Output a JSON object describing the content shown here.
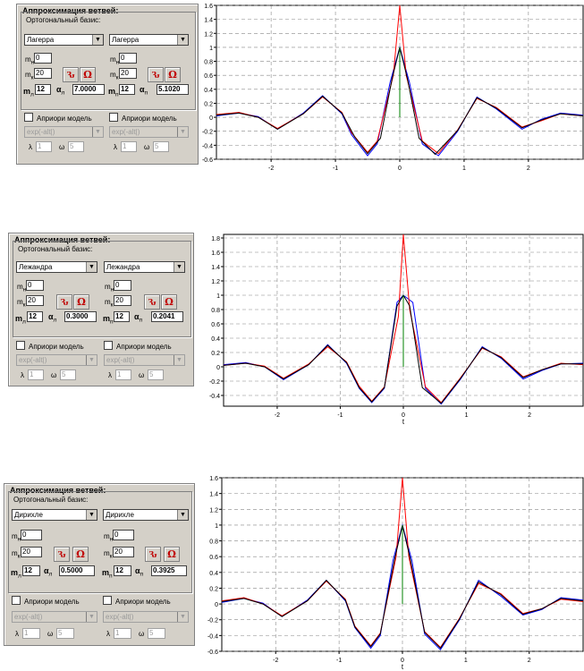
{
  "panel": {
    "title": "Аппроксимация ветвей:",
    "basis_label": "Ортогональный базис:",
    "mn_label": "m",
    "mn_sub": "н",
    "mk_label": "m",
    "mk_sub": "к",
    "mn_value": "0",
    "mk_value": "20",
    "m_bold": "m",
    "alpha_symbol": "α",
    "sub_left": "л",
    "sub_right": "п",
    "m_value": "12",
    "apriori_label": "Априори модель",
    "model_value": "exp(-alt|)",
    "lambda_symbol": "λ",
    "omega_symbol": "ω",
    "lambda_value": "1",
    "omega_value": "5",
    "btn1_glyph": "Ԅ",
    "btn2_glyph": "Ω"
  },
  "blocks": [
    {
      "basis_left": "Лагерра",
      "basis_right": "Лагерра",
      "alpha_left": "7.0000",
      "alpha_right": "5.1020"
    },
    {
      "basis_left": "Лежандра",
      "basis_right": "Лежандра",
      "alpha_left": "0.3000",
      "alpha_right": "0.2041"
    },
    {
      "basis_left": "Дирихле",
      "basis_right": "Дирихле",
      "alpha_left": "0.5000",
      "alpha_right": "0.3925"
    }
  ],
  "chart_data": [
    {
      "type": "line",
      "xlabel": "",
      "xlim": [
        -2.85,
        2.85
      ],
      "ylim": [
        -0.6,
        1.6
      ],
      "x_ticks": [
        -2,
        -1,
        0,
        1,
        2
      ],
      "y_ticks": [
        1.6,
        1.4,
        1.2,
        1,
        0.8,
        0.6,
        0.4,
        0.2,
        0,
        -0.2,
        -0.4,
        -0.6
      ],
      "y_tick_labels": [
        "1.6",
        "1.4",
        "1.2",
        "1",
        "0.8",
        "0.6",
        "0.4",
        "0.2",
        "0",
        "-0.2",
        "-0.4",
        "-0.6"
      ],
      "grid": true,
      "series": [
        {
          "color": "#0000ff",
          "x": [
            -2.85,
            -2.5,
            -2.2,
            -1.9,
            -1.5,
            -1.2,
            -0.9,
            -0.75,
            -0.5,
            -0.35,
            -0.15,
            0,
            0.15,
            0.35,
            0.6,
            0.9,
            1.2,
            1.5,
            1.9,
            2.2,
            2.5,
            2.85
          ],
          "y": [
            0.02,
            0.06,
            0.01,
            -0.17,
            0.06,
            0.31,
            0.05,
            -0.25,
            -0.55,
            -0.38,
            0.5,
            1.0,
            0.5,
            -0.38,
            -0.55,
            -0.2,
            0.29,
            0.12,
            -0.17,
            -0.03,
            0.06,
            0.03
          ]
        },
        {
          "color": "#ff0000",
          "x": [
            -2.85,
            -2.5,
            -2.2,
            -1.9,
            -1.5,
            -1.2,
            -0.9,
            -0.75,
            -0.5,
            -0.35,
            -0.1,
            0,
            0.1,
            0.35,
            0.6,
            0.9,
            1.2,
            1.5,
            1.9,
            2.2,
            2.5,
            2.85
          ],
          "y": [
            0.04,
            0.07,
            0.0,
            -0.16,
            0.05,
            0.29,
            0.07,
            -0.22,
            -0.5,
            -0.34,
            0.6,
            1.6,
            0.6,
            -0.34,
            -0.52,
            -0.18,
            0.27,
            0.14,
            -0.14,
            -0.05,
            0.05,
            0.02
          ]
        },
        {
          "color": "#000000",
          "x": [
            -2.85,
            -2.5,
            -2.2,
            -1.9,
            -1.5,
            -1.2,
            -0.9,
            -0.7,
            -0.5,
            -0.3,
            -0.12,
            0,
            0.12,
            0.3,
            0.55,
            0.9,
            1.2,
            1.5,
            1.9,
            2.2,
            2.5,
            2.85
          ],
          "y": [
            0.03,
            0.06,
            0.0,
            -0.17,
            0.05,
            0.3,
            0.06,
            -0.28,
            -0.52,
            -0.3,
            0.55,
            1.0,
            0.55,
            -0.3,
            -0.53,
            -0.19,
            0.28,
            0.13,
            -0.15,
            -0.04,
            0.05,
            0.02
          ]
        },
        {
          "color": "#008000",
          "x": [
            0,
            0
          ],
          "y": [
            0,
            1.0
          ]
        }
      ]
    },
    {
      "type": "line",
      "xlabel": "t",
      "xlim": [
        -2.85,
        2.85
      ],
      "ylim": [
        -0.55,
        1.85
      ],
      "x_ticks": [
        -2,
        -1,
        0,
        1,
        2
      ],
      "y_ticks": [
        1.8,
        1.6,
        1.4,
        1.2,
        1,
        0.8,
        0.6,
        0.4,
        0.2,
        0,
        -0.2,
        -0.4
      ],
      "y_tick_labels": [
        "1.8",
        "1.6",
        "1.4",
        "1.2",
        "1",
        "0.8",
        "0.6",
        "0.4",
        "0.2",
        "0",
        "-0.2",
        "-0.4"
      ],
      "grid": true,
      "series": [
        {
          "color": "#0000ff",
          "x": [
            -2.85,
            -2.5,
            -2.2,
            -1.9,
            -1.5,
            -1.2,
            -0.9,
            -0.7,
            -0.5,
            -0.3,
            -0.1,
            0,
            0.15,
            0.35,
            0.6,
            0.9,
            1.25,
            1.55,
            1.9,
            2.2,
            2.5,
            2.85
          ],
          "y": [
            0.03,
            0.06,
            0.0,
            -0.18,
            0.03,
            0.31,
            0.05,
            -0.3,
            -0.5,
            -0.3,
            0.9,
            1.0,
            0.9,
            -0.3,
            -0.52,
            -0.18,
            0.28,
            0.12,
            -0.17,
            -0.05,
            0.04,
            0.05
          ]
        },
        {
          "color": "#ff0000",
          "x": [
            -2.85,
            -2.5,
            -2.2,
            -1.9,
            -1.5,
            -1.2,
            -0.9,
            -0.7,
            -0.5,
            -0.3,
            -0.08,
            0,
            0.1,
            0.35,
            0.6,
            0.9,
            1.25,
            1.55,
            1.9,
            2.2,
            2.5,
            2.85
          ],
          "y": [
            0.02,
            0.05,
            0.01,
            -0.16,
            0.04,
            0.28,
            0.07,
            -0.27,
            -0.48,
            -0.28,
            0.7,
            1.85,
            0.8,
            -0.28,
            -0.5,
            -0.16,
            0.26,
            0.14,
            -0.14,
            -0.04,
            0.05,
            0.03
          ]
        },
        {
          "color": "#000000",
          "x": [
            -2.85,
            -2.5,
            -2.2,
            -1.9,
            -1.5,
            -1.2,
            -0.9,
            -0.7,
            -0.5,
            -0.3,
            -0.1,
            0,
            0.1,
            0.3,
            0.6,
            0.9,
            1.25,
            1.55,
            1.9,
            2.2,
            2.5,
            2.85
          ],
          "y": [
            0.02,
            0.05,
            0.0,
            -0.17,
            0.03,
            0.3,
            0.06,
            -0.29,
            -0.49,
            -0.29,
            0.85,
            1.0,
            0.85,
            -0.29,
            -0.51,
            -0.17,
            0.27,
            0.13,
            -0.15,
            -0.04,
            0.04,
            0.04
          ]
        },
        {
          "color": "#008000",
          "x": [
            0,
            0
          ],
          "y": [
            0,
            1.0
          ]
        }
      ]
    },
    {
      "type": "line",
      "xlabel": "t",
      "xlim": [
        -2.85,
        2.85
      ],
      "ylim": [
        -0.6,
        1.6
      ],
      "x_ticks": [
        -2,
        -1,
        0,
        1,
        2
      ],
      "y_ticks": [
        1.6,
        1.4,
        1.2,
        1,
        0.8,
        0.6,
        0.4,
        0.2,
        0,
        -0.2,
        -0.4,
        -0.6
      ],
      "y_tick_labels": [
        "1.6",
        "1.4",
        "1.2",
        "1",
        "0.8",
        "0.6",
        "0.4",
        "0.2",
        "0",
        "-0.2",
        "-0.4",
        "-0.6"
      ],
      "grid": true,
      "series": [
        {
          "color": "#0000ff",
          "x": [
            -2.85,
            -2.5,
            -2.2,
            -1.9,
            -1.5,
            -1.2,
            -0.9,
            -0.75,
            -0.5,
            -0.35,
            -0.15,
            0,
            0.15,
            0.35,
            0.6,
            0.9,
            1.2,
            1.55,
            1.9,
            2.2,
            2.5,
            2.85
          ],
          "y": [
            0.02,
            0.07,
            0.01,
            -0.16,
            0.05,
            0.3,
            0.04,
            -0.3,
            -0.56,
            -0.4,
            0.55,
            1.0,
            0.55,
            -0.38,
            -0.58,
            -0.2,
            0.3,
            0.1,
            -0.14,
            -0.07,
            0.08,
            0.05
          ]
        },
        {
          "color": "#ff0000",
          "x": [
            -2.85,
            -2.5,
            -2.2,
            -1.9,
            -1.5,
            -1.2,
            -0.9,
            -0.75,
            -0.5,
            -0.35,
            -0.1,
            0,
            0.1,
            0.35,
            0.6,
            0.9,
            1.2,
            1.55,
            1.9,
            2.2,
            2.5,
            2.85
          ],
          "y": [
            0.04,
            0.08,
            0.0,
            -0.15,
            0.04,
            0.29,
            0.06,
            -0.28,
            -0.53,
            -0.37,
            0.6,
            1.6,
            0.6,
            -0.35,
            -0.55,
            -0.18,
            0.26,
            0.13,
            -0.12,
            -0.06,
            0.06,
            0.03
          ]
        },
        {
          "color": "#000000",
          "x": [
            -2.85,
            -2.5,
            -2.2,
            -1.9,
            -1.5,
            -1.2,
            -0.9,
            -0.75,
            -0.5,
            -0.35,
            -0.12,
            0,
            0.12,
            0.35,
            0.6,
            0.9,
            1.2,
            1.55,
            1.9,
            2.2,
            2.5,
            2.85
          ],
          "y": [
            0.03,
            0.07,
            0.0,
            -0.16,
            0.04,
            0.3,
            0.05,
            -0.29,
            -0.54,
            -0.38,
            0.58,
            1.0,
            0.58,
            -0.36,
            -0.56,
            -0.19,
            0.28,
            0.12,
            -0.13,
            -0.06,
            0.07,
            0.04
          ]
        },
        {
          "color": "#008000",
          "x": [
            0,
            0
          ],
          "y": [
            0,
            1.0
          ]
        }
      ]
    }
  ]
}
